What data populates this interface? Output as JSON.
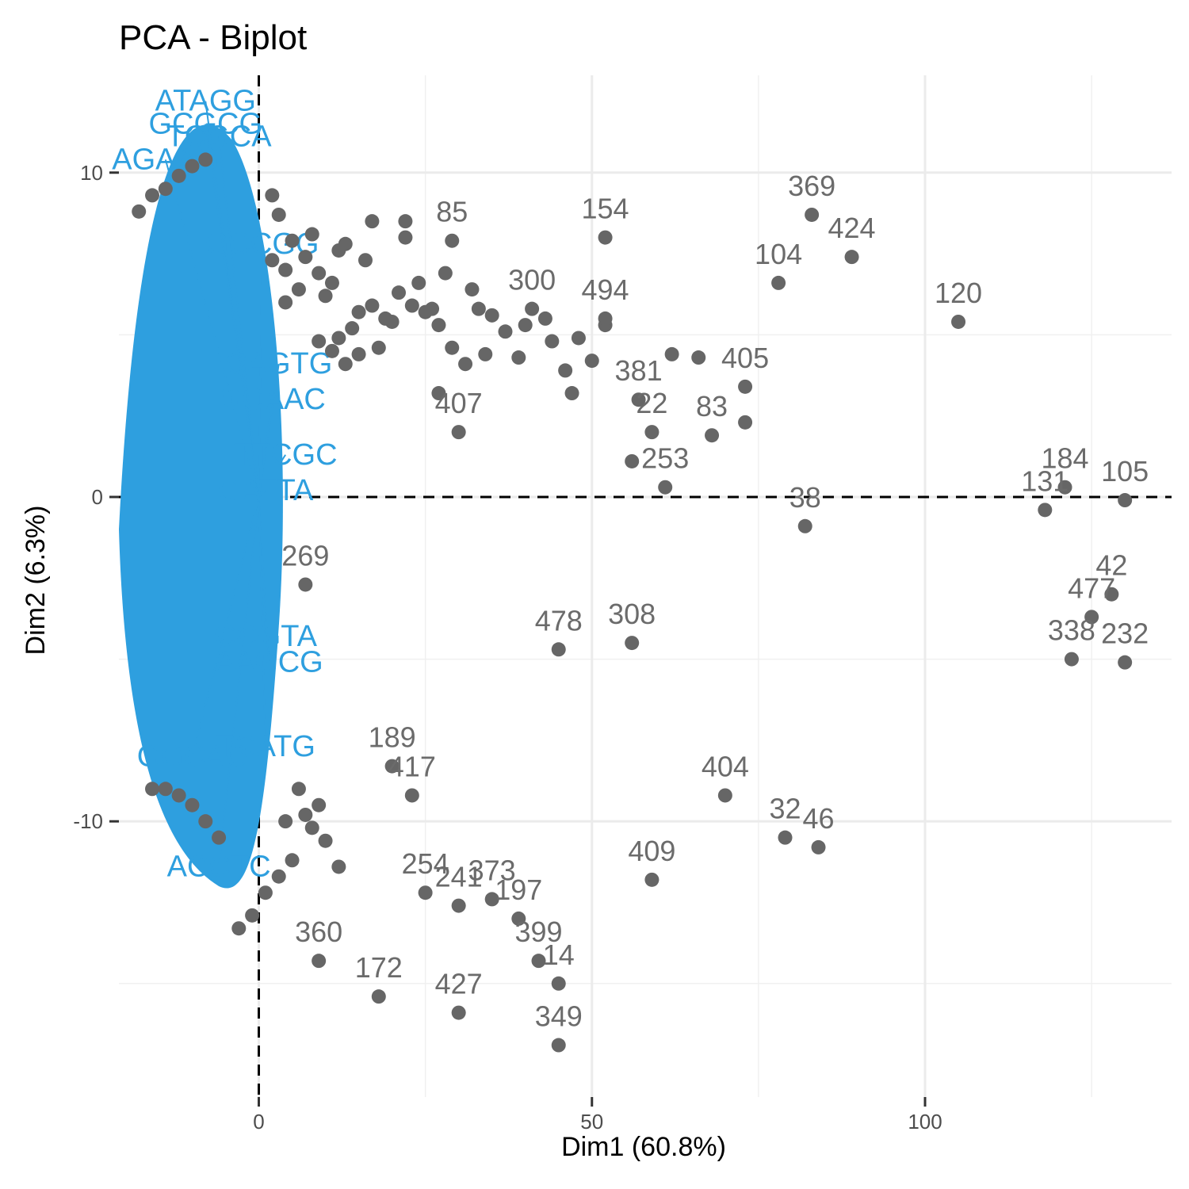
{
  "chart_data": {
    "type": "scatter",
    "title": "PCA - Biplot",
    "xlabel": "Dim1 (60.8%)",
    "ylabel": "Dim2 (6.3%)",
    "xlim": [
      -21,
      137
    ],
    "ylim": [
      -18.5,
      13
    ],
    "x_ticks": [
      0,
      50,
      100
    ],
    "y_ticks": [
      -10,
      0,
      10
    ],
    "grid": true,
    "colors": {
      "individuals": "#666666",
      "variables": "#2e9fdf",
      "reference_lines": "#000000"
    },
    "labeled_points": [
      {
        "label": "154",
        "x": 52,
        "y": 8
      },
      {
        "label": "369",
        "x": 83,
        "y": 8.7
      },
      {
        "label": "424",
        "x": 89,
        "y": 7.4
      },
      {
        "label": "104",
        "x": 78,
        "y": 6.6
      },
      {
        "label": "120",
        "x": 105,
        "y": 5.4
      },
      {
        "label": "85",
        "x": 29,
        "y": 7.9
      },
      {
        "label": "300",
        "x": 41,
        "y": 5.8
      },
      {
        "label": "494",
        "x": 52,
        "y": 5.5
      },
      {
        "label": "405",
        "x": 73,
        "y": 3.4
      },
      {
        "label": "381",
        "x": 57,
        "y": 3
      },
      {
        "label": "22",
        "x": 59,
        "y": 2
      },
      {
        "label": "83",
        "x": 68,
        "y": 1.9
      },
      {
        "label": "407",
        "x": 30,
        "y": 2
      },
      {
        "label": "253",
        "x": 61,
        "y": 0.3
      },
      {
        "label": "38",
        "x": 82,
        "y": -0.9
      },
      {
        "label": "131",
        "x": 118,
        "y": -0.4
      },
      {
        "label": "184",
        "x": 121,
        "y": 0.3
      },
      {
        "label": "105",
        "x": 130,
        "y": -0.1
      },
      {
        "label": "42",
        "x": 128,
        "y": -3
      },
      {
        "label": "477",
        "x": 125,
        "y": -3.7
      },
      {
        "label": "338",
        "x": 122,
        "y": -5
      },
      {
        "label": "232",
        "x": 130,
        "y": -5.1
      },
      {
        "label": "269",
        "x": 7,
        "y": -2.7
      },
      {
        "label": "478",
        "x": 45,
        "y": -4.7
      },
      {
        "label": "308",
        "x": 56,
        "y": -4.5
      },
      {
        "label": "189",
        "x": 20,
        "y": -8.3
      },
      {
        "label": "417",
        "x": 23,
        "y": -9.2
      },
      {
        "label": "404",
        "x": 70,
        "y": -9.2
      },
      {
        "label": "32",
        "x": 79,
        "y": -10.5
      },
      {
        "label": "46",
        "x": 84,
        "y": -10.8
      },
      {
        "label": "409",
        "x": 59,
        "y": -11.8
      },
      {
        "label": "254",
        "x": 25,
        "y": -12.2
      },
      {
        "label": "241",
        "x": 30,
        "y": -12.6
      },
      {
        "label": "373",
        "x": 35,
        "y": -12.4
      },
      {
        "label": "197",
        "x": 39,
        "y": -13
      },
      {
        "label": "399",
        "x": 42,
        "y": -14.3
      },
      {
        "label": "14",
        "x": 45,
        "y": -15
      },
      {
        "label": "360",
        "x": 9,
        "y": -14.3
      },
      {
        "label": "172",
        "x": 18,
        "y": -15.4
      },
      {
        "label": "427",
        "x": 30,
        "y": -15.9
      },
      {
        "label": "349",
        "x": 45,
        "y": -16.9
      }
    ],
    "unlabeled_points": [
      [
        52,
        5.3
      ],
      [
        48,
        4.9
      ],
      [
        44,
        4.8
      ],
      [
        39,
        4.3
      ],
      [
        34,
        4.4
      ],
      [
        31,
        4.1
      ],
      [
        29,
        4.6
      ],
      [
        27,
        5.3
      ],
      [
        25,
        5.7
      ],
      [
        23,
        5.9
      ],
      [
        20,
        5.4
      ],
      [
        18,
        4.6
      ],
      [
        50,
        4.2
      ],
      [
        46,
        3.9
      ],
      [
        47,
        3.2
      ],
      [
        56,
        1.1
      ],
      [
        62,
        4.4
      ],
      [
        66,
        4.3
      ],
      [
        73,
        2.3
      ],
      [
        27,
        3.2
      ],
      [
        15,
        5.7
      ],
      [
        12,
        4.9
      ],
      [
        14,
        5.2
      ],
      [
        22,
        8.5
      ],
      [
        22,
        8
      ],
      [
        17,
        8.5
      ],
      [
        16,
        7.3
      ],
      [
        13,
        7.8
      ],
      [
        11,
        6.6
      ],
      [
        10,
        6.2
      ],
      [
        12,
        7.6
      ],
      [
        8,
        8.1
      ],
      [
        7,
        7.4
      ],
      [
        9,
        6.9
      ],
      [
        26,
        5.8
      ],
      [
        28,
        6.9
      ],
      [
        32,
        6.4
      ],
      [
        35,
        5.6
      ],
      [
        37,
        5.1
      ],
      [
        43,
        5.5
      ],
      [
        40,
        5.3
      ],
      [
        33,
        5.8
      ],
      [
        24,
        6.6
      ],
      [
        21,
        6.3
      ],
      [
        19,
        5.5
      ],
      [
        17,
        5.9
      ],
      [
        15,
        4.4
      ],
      [
        13,
        4.1
      ],
      [
        11,
        4.5
      ],
      [
        9,
        4.8
      ],
      [
        5,
        7.9
      ],
      [
        4,
        7
      ],
      [
        6,
        6.4
      ],
      [
        3,
        8.7
      ],
      [
        2,
        9.3
      ],
      [
        4,
        6
      ],
      [
        2,
        7.3
      ],
      [
        12,
        -11.4
      ],
      [
        10,
        -10.6
      ],
      [
        8,
        -10.2
      ],
      [
        7,
        -9.8
      ],
      [
        9,
        -9.5
      ],
      [
        5,
        -11.2
      ],
      [
        3,
        -11.7
      ],
      [
        1,
        -12.2
      ],
      [
        -1,
        -12.9
      ],
      [
        -3,
        -13.3
      ],
      [
        6,
        -9
      ],
      [
        4,
        -10
      ],
      [
        -10,
        -9.5
      ],
      [
        -12,
        -9.2
      ],
      [
        -14,
        -9
      ],
      [
        -16,
        -9
      ],
      [
        -8,
        -10
      ],
      [
        -6,
        -10.5
      ],
      [
        -18,
        8.8
      ],
      [
        -16,
        9.3
      ],
      [
        -14,
        9.5
      ],
      [
        -12,
        9.9
      ],
      [
        -10,
        10.2
      ],
      [
        -8,
        10.4
      ]
    ],
    "variables": [
      {
        "label": "ATAGG",
        "x": -8,
        "y": 12.2
      },
      {
        "label": "GCGCG",
        "x": -8,
        "y": 11.5
      },
      {
        "label": "TCGCA",
        "x": -6,
        "y": 11.1
      },
      {
        "label": "AGAAG",
        "x": -14,
        "y": 10.4
      },
      {
        "label": "GCCGG",
        "x": 0.5,
        "y": 7.8
      },
      {
        "label": "CAGTG",
        "x": 3,
        "y": 4.1
      },
      {
        "label": "GCAAC",
        "x": 2,
        "y": 3
      },
      {
        "label": "TTCGC",
        "x": 4,
        "y": 1.3
      },
      {
        "label": "GATTA",
        "x": 1,
        "y": 0.2
      },
      {
        "label": "CCGTA",
        "x": 1,
        "y": -4.3
      },
      {
        "label": "AAGCG",
        "x": 1.5,
        "y": -5.1
      },
      {
        "label": "TCATG",
        "x": 1,
        "y": -7.7
      },
      {
        "label": "ACCTC",
        "x": -6,
        "y": -11.4
      },
      {
        "label": "GGCAC",
        "x": -10,
        "y": -8
      }
    ]
  }
}
